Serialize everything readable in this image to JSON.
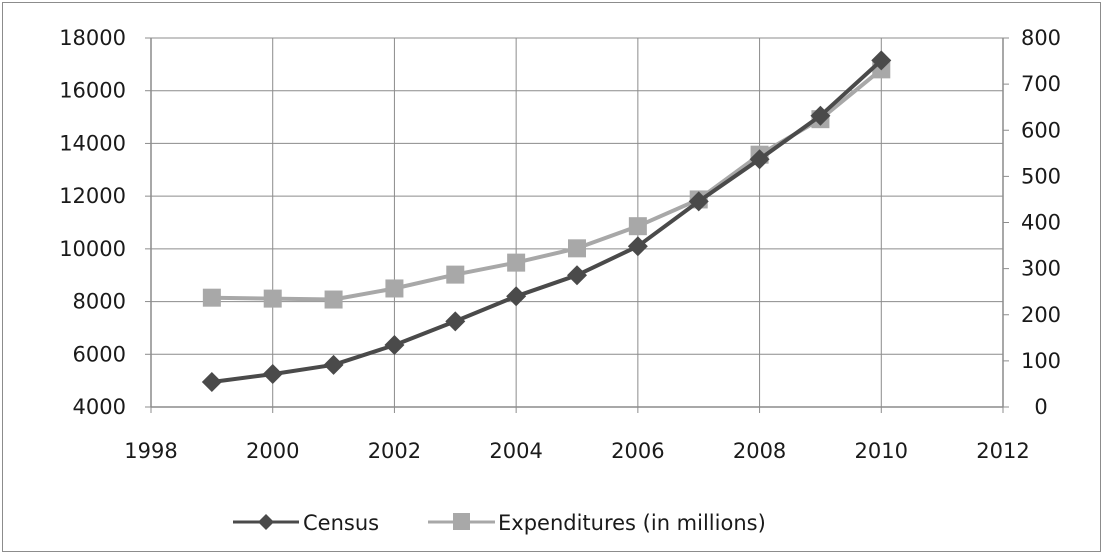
{
  "chart_data": {
    "type": "line",
    "title": "",
    "xlabel": "",
    "ylabel": "",
    "y2label": "",
    "xlim": [
      1998,
      2012
    ],
    "x_ticks": [
      "1998",
      "2000",
      "2002",
      "2004",
      "2006",
      "2008",
      "2010",
      "2012"
    ],
    "ylim": [
      4000,
      18000
    ],
    "y_ticks": [
      "4000",
      "6000",
      "8000",
      "10000",
      "12000",
      "14000",
      "16000",
      "18000"
    ],
    "y2lim": [
      0,
      800
    ],
    "y2_ticks": [
      "0",
      "100",
      "200",
      "300",
      "400",
      "500",
      "600",
      "700",
      "800"
    ],
    "grid": true,
    "legend_position": "bottom",
    "x": [
      1999,
      2000,
      2001,
      2002,
      2003,
      2004,
      2005,
      2006,
      2007,
      2008,
      2009,
      2010
    ],
    "series": [
      {
        "name": "Census",
        "axis": "left",
        "marker": "diamond",
        "color": "#4a4a4a",
        "values": [
          4950,
          5250,
          5600,
          6350,
          7250,
          8200,
          9000,
          10100,
          11800,
          13400,
          15050,
          17150
        ]
      },
      {
        "name": "Expenditures (in millions)",
        "axis": "right",
        "marker": "square",
        "color": "#a8a8a8",
        "values": [
          237,
          235,
          233,
          257,
          287,
          313,
          344,
          392,
          450,
          547,
          624,
          732
        ]
      }
    ]
  }
}
